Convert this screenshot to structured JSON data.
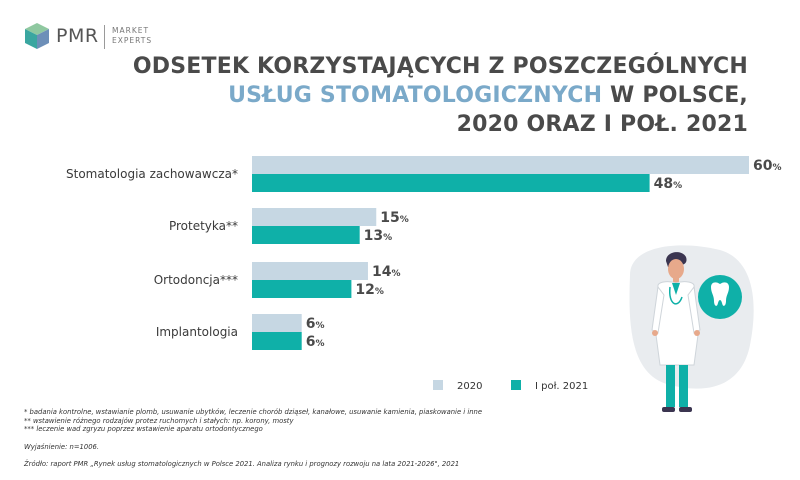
{
  "logo": {
    "name": "PMR",
    "tagline": "MARKET EXPERTS"
  },
  "title": {
    "line1": "ODSETEK KORZYSTAJĄCYCH Z POSZCZEGÓLNYCH",
    "line2_accent": "USŁUG STOMATOLOGICZNYCH",
    "line2_rest": " W POLSCE,",
    "line3": "2020 ORAZ I POŁ. 2021"
  },
  "colors": {
    "series_2020": "#c6d7e3",
    "series_2021": "#0fb0a8",
    "accent_title": "#7aa9c9",
    "text": "#3a3a3a"
  },
  "chart_data": {
    "type": "bar",
    "orientation": "horizontal",
    "categories": [
      "Stomatologia zachowawcza*",
      "Protetyka**",
      "Ortodoncja***",
      "Implantologia"
    ],
    "series": [
      {
        "name": "2020",
        "values": [
          60,
          15,
          14,
          6
        ]
      },
      {
        "name": "I poł. 2021",
        "values": [
          48,
          13,
          12,
          6
        ]
      }
    ],
    "value_suffix": "%",
    "xlim": [
      0,
      60
    ],
    "grid": false,
    "legend": "bottom-right"
  },
  "notes": {
    "n1": "* badania kontrolne, wstawianie plomb, usuwanie ubytków, leczenie chorób dziąseł, kanałowe, usuwanie kamienia, piaskowanie i inne",
    "n2": "** wstawienie różnego rodzajów protez ruchomych i stałych: np. korony, mosty",
    "n3": "*** leczenie wad zgryzu poprzez wstawienie aparatu ortodontycznego",
    "explanation": "Wyjaśnienie: n=1006.",
    "source": "Źródło: raport PMR „Rynek usług stomatologicznych w Polsce 2021. Analiza rynku i prognozy rozwoju na lata 2021-2026\", 2021"
  },
  "illustration": {
    "icon": "tooth-icon",
    "figure": "dentist-figure"
  }
}
